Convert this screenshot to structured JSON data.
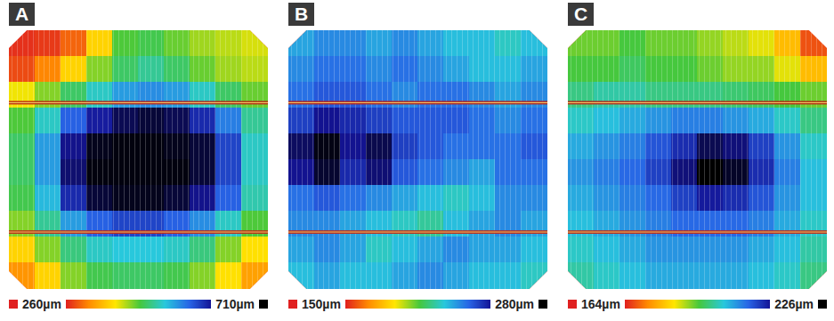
{
  "chart_data": [
    {
      "type": "heatmap",
      "panel": "A",
      "tick_labels": false,
      "colorbar_range": [
        260,
        710
      ],
      "colorbar_ticks": [
        {
          "value": 260,
          "label": "260µm"
        },
        {
          "value": 710,
          "label": "710µm"
        }
      ],
      "cells": [
        [
          270,
          275,
          300,
          380,
          460,
          470,
          450,
          430,
          420,
          410
        ],
        [
          285,
          320,
          380,
          440,
          480,
          500,
          480,
          450,
          430,
          420
        ],
        [
          400,
          440,
          480,
          520,
          560,
          570,
          560,
          520,
          480,
          450
        ],
        [
          460,
          520,
          600,
          650,
          680,
          690,
          680,
          640,
          580,
          500
        ],
        [
          480,
          560,
          660,
          700,
          705,
          705,
          700,
          690,
          620,
          520
        ],
        [
          480,
          560,
          670,
          705,
          705,
          705,
          705,
          690,
          620,
          520
        ],
        [
          470,
          540,
          640,
          690,
          700,
          700,
          690,
          660,
          600,
          510
        ],
        [
          440,
          500,
          560,
          600,
          620,
          620,
          600,
          570,
          520,
          460
        ],
        [
          380,
          440,
          490,
          520,
          530,
          530,
          520,
          490,
          440,
          390
        ],
        [
          330,
          380,
          440,
          470,
          480,
          480,
          470,
          440,
          390,
          340
        ]
      ]
    },
    {
      "type": "heatmap",
      "panel": "B",
      "tick_labels": false,
      "colorbar_range": [
        150,
        280
      ],
      "colorbar_ticks": [
        {
          "value": 150,
          "label": "150µm"
        },
        {
          "value": 280,
          "label": "280µm"
        }
      ],
      "cells": [
        [
          235,
          240,
          240,
          235,
          240,
          235,
          230,
          230,
          225,
          230
        ],
        [
          240,
          245,
          245,
          240,
          245,
          240,
          235,
          230,
          230,
          235
        ],
        [
          245,
          250,
          250,
          245,
          240,
          245,
          245,
          240,
          235,
          240
        ],
        [
          255,
          265,
          260,
          255,
          250,
          250,
          250,
          245,
          240,
          245
        ],
        [
          270,
          278,
          265,
          272,
          255,
          250,
          245,
          245,
          245,
          250
        ],
        [
          265,
          275,
          260,
          268,
          250,
          245,
          240,
          235,
          245,
          245
        ],
        [
          245,
          250,
          245,
          240,
          235,
          230,
          225,
          230,
          240,
          240
        ],
        [
          240,
          240,
          235,
          230,
          225,
          220,
          230,
          235,
          240,
          235
        ],
        [
          235,
          240,
          235,
          225,
          230,
          235,
          240,
          235,
          235,
          230
        ],
        [
          230,
          235,
          230,
          230,
          235,
          240,
          235,
          230,
          230,
          225
        ]
      ]
    },
    {
      "type": "heatmap",
      "panel": "C",
      "tick_labels": false,
      "colorbar_range": [
        164,
        226
      ],
      "colorbar_ticks": [
        {
          "value": 164,
          "label": "164µm"
        },
        {
          "value": 226,
          "label": "226µm"
        }
      ],
      "cells": [
        [
          190,
          190,
          192,
          190,
          190,
          188,
          186,
          184,
          178,
          168
        ],
        [
          192,
          192,
          194,
          192,
          192,
          190,
          188,
          188,
          184,
          178
        ],
        [
          196,
          198,
          198,
          196,
          196,
          196,
          195,
          194,
          192,
          190
        ],
        [
          200,
          202,
          204,
          206,
          208,
          208,
          206,
          204,
          200,
          196
        ],
        [
          204,
          206,
          208,
          212,
          216,
          222,
          220,
          214,
          206,
          200
        ],
        [
          206,
          208,
          210,
          214,
          220,
          226,
          224,
          216,
          208,
          202
        ],
        [
          204,
          206,
          208,
          210,
          214,
          218,
          216,
          212,
          206,
          202
        ],
        [
          202,
          204,
          206,
          208,
          210,
          210,
          210,
          208,
          204,
          200
        ],
        [
          200,
          202,
          204,
          206,
          206,
          206,
          206,
          204,
          202,
          198
        ],
        [
          198,
          200,
          202,
          204,
          204,
          204,
          204,
          202,
          200,
          196
        ]
      ]
    }
  ]
}
